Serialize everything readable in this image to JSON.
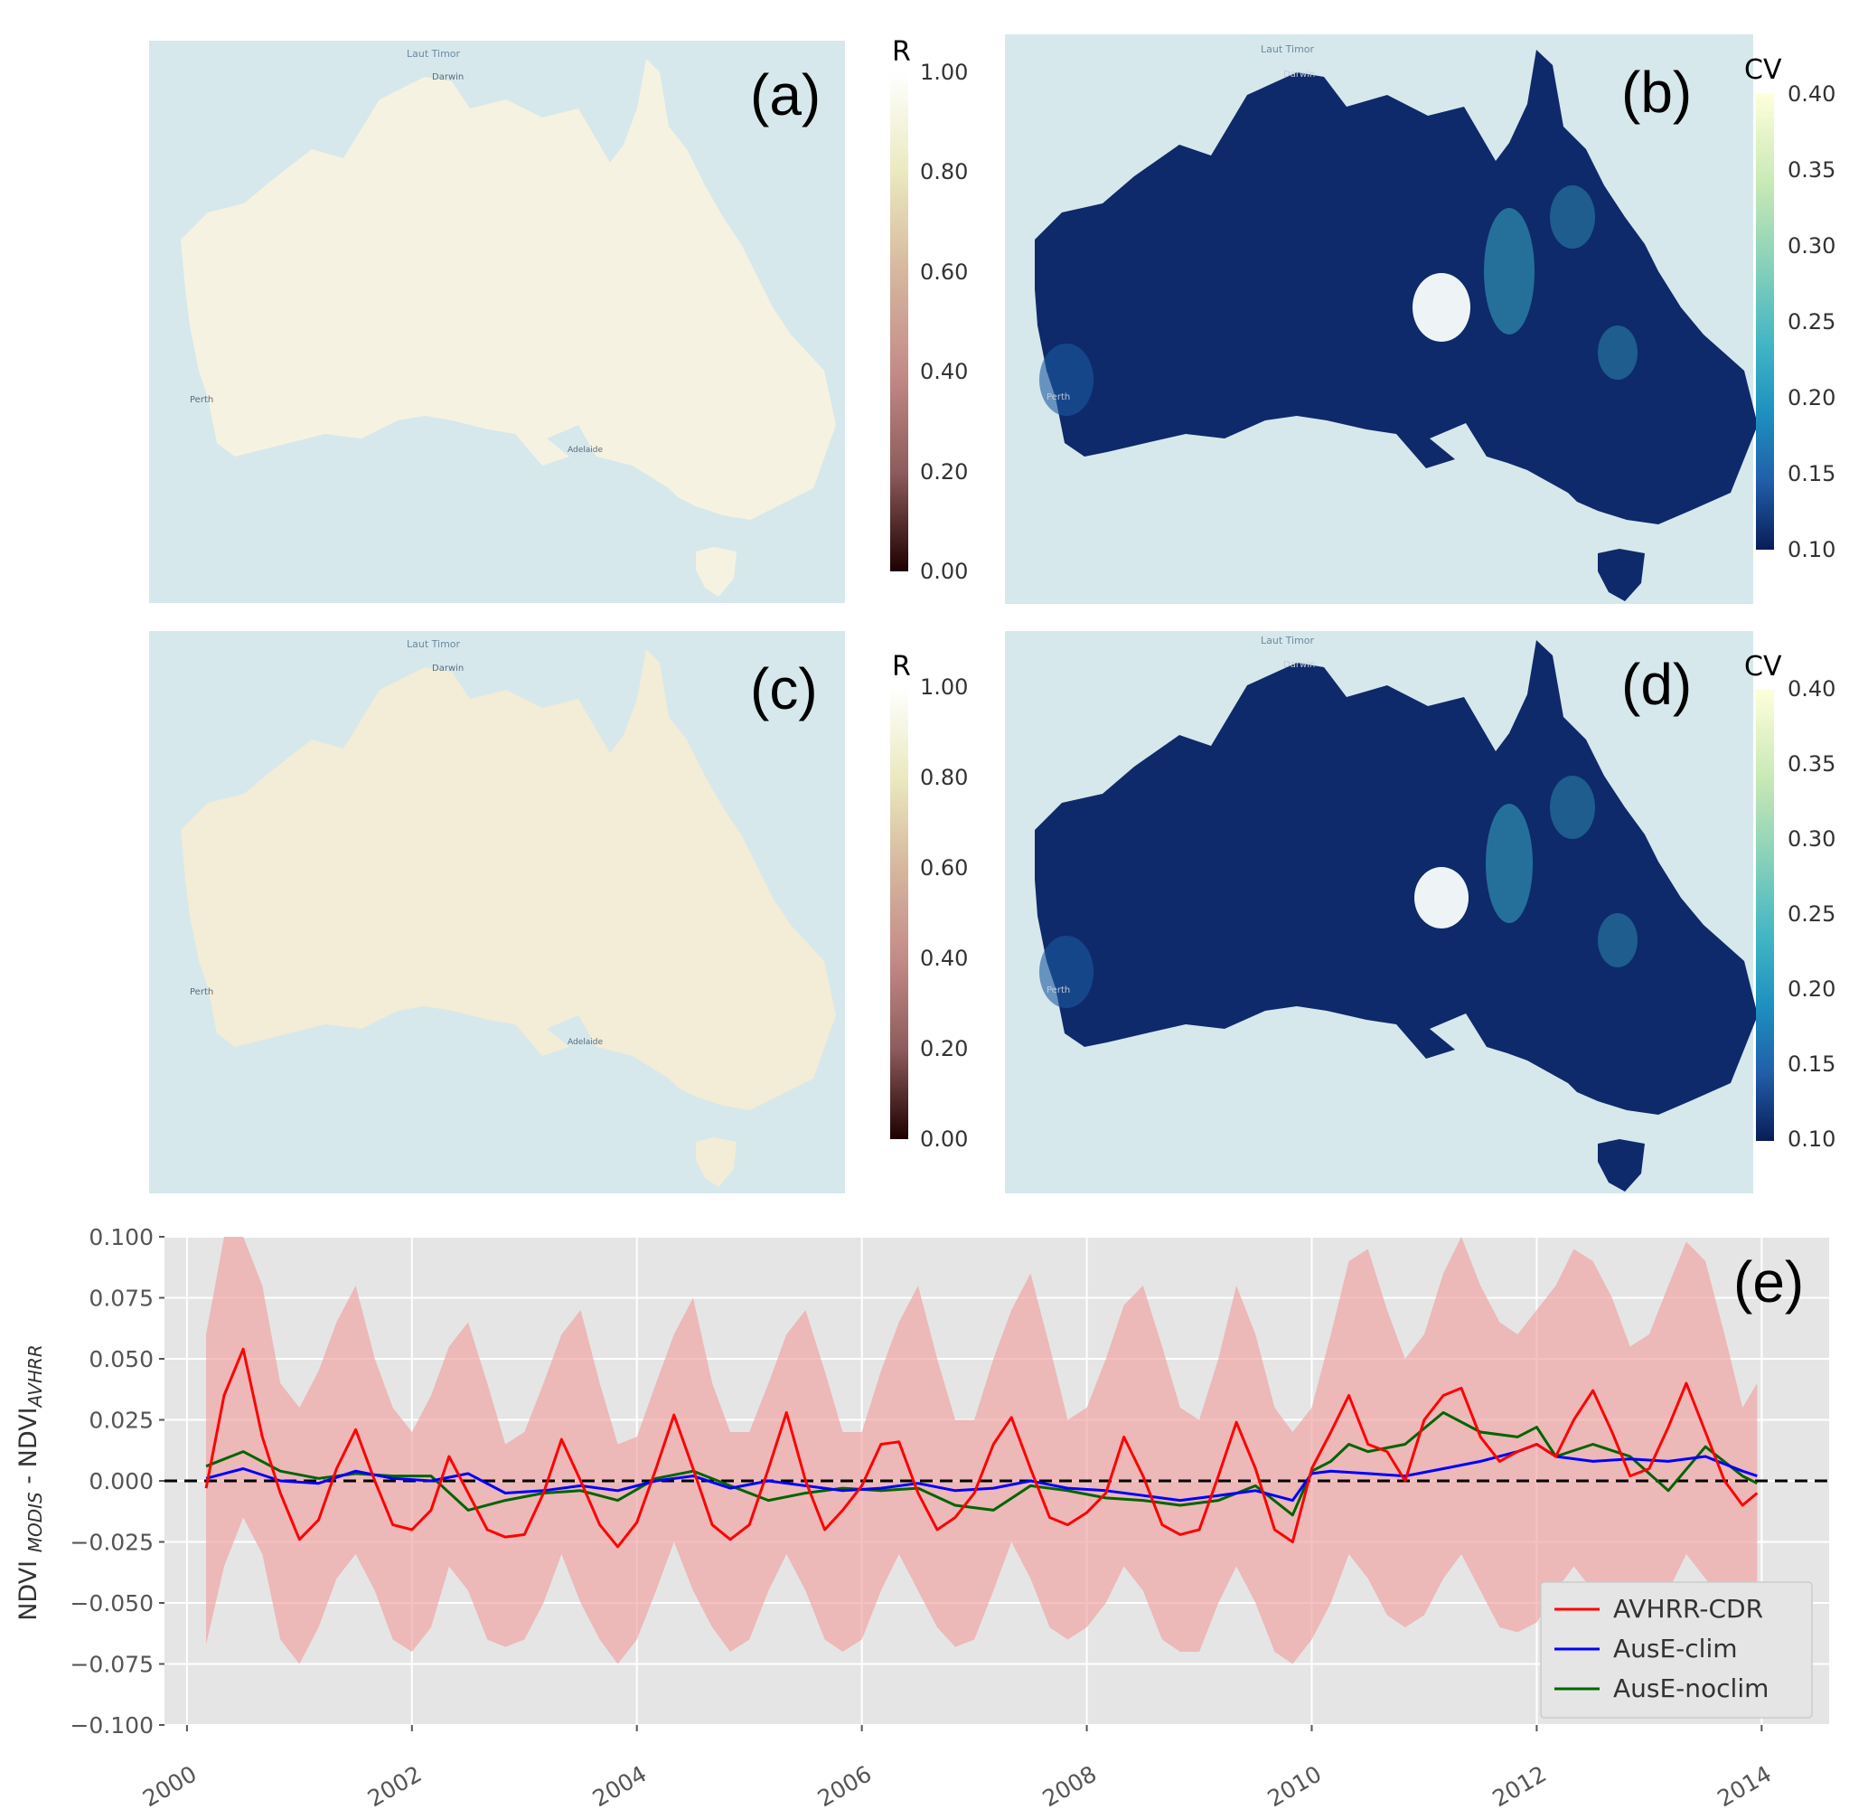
{
  "panels": [
    {
      "label": "(a)",
      "colorbar": {
        "title": "R",
        "ticks": [
          "1.00",
          "0.80",
          "0.60",
          "0.40",
          "0.20",
          "0.00"
        ],
        "cmap": "pink"
      }
    },
    {
      "label": "(b)",
      "colorbar": {
        "title": "CV",
        "ticks": [
          "0.40",
          "0.35",
          "0.30",
          "0.25",
          "0.20",
          "0.15",
          "0.10"
        ],
        "cmap": "YlGnBu"
      }
    },
    {
      "label": "(c)",
      "colorbar": {
        "title": "R",
        "ticks": [
          "1.00",
          "0.80",
          "0.60",
          "0.40",
          "0.20",
          "0.00"
        ],
        "cmap": "pink"
      }
    },
    {
      "label": "(d)",
      "colorbar": {
        "title": "CV",
        "ticks": [
          "0.40",
          "0.35",
          "0.30",
          "0.25",
          "0.20",
          "0.15",
          "0.10"
        ],
        "cmap": "YlGnBu"
      }
    }
  ],
  "map_labels": {
    "darwin": "Darwin",
    "perth": "Perth",
    "adelaide": "Adelaide",
    "timor": "Laut Timor"
  },
  "colors": {
    "ocean": "#d6e8ec",
    "land_r": "#f6f2e2",
    "land_cv": "#0e2a6a",
    "avhrr": "#ff0000",
    "clim": "#0000ff",
    "noclim": "#006400",
    "band": "#f0a0a0",
    "plot_bg": "#e5e5e5"
  },
  "chart_data": {
    "type": "line",
    "panel_label": "(e)",
    "ylabel": "NDVI MODIS - NDVI AVHRR",
    "ylim": [
      -0.1,
      0.1
    ],
    "xlim": [
      1999.8,
      2014.6
    ],
    "yticks": [
      "0.100",
      "0.075",
      "0.050",
      "0.025",
      "0.000",
      "−0.025",
      "−0.050",
      "−0.075",
      "−0.100"
    ],
    "xticks": [
      "2000",
      "2002",
      "2004",
      "2006",
      "2008",
      "2010",
      "2012",
      "2014"
    ],
    "grid": true,
    "legend_position": "lower-right",
    "reference_line": 0.0,
    "series": [
      {
        "name": "AVHRR-CDR",
        "color": "#ff0000",
        "x": [
          2000.17,
          2000.33,
          2000.5,
          2000.67,
          2000.83,
          2001.0,
          2001.17,
          2001.33,
          2001.5,
          2001.67,
          2001.83,
          2002.0,
          2002.17,
          2002.33,
          2002.5,
          2002.67,
          2002.83,
          2003.0,
          2003.17,
          2003.33,
          2003.5,
          2003.67,
          2003.83,
          2004.0,
          2004.17,
          2004.33,
          2004.5,
          2004.67,
          2004.83,
          2005.0,
          2005.17,
          2005.33,
          2005.5,
          2005.67,
          2005.83,
          2006.0,
          2006.17,
          2006.33,
          2006.5,
          2006.67,
          2006.83,
          2007.0,
          2007.17,
          2007.33,
          2007.5,
          2007.67,
          2007.83,
          2008.0,
          2008.17,
          2008.33,
          2008.5,
          2008.67,
          2008.83,
          2009.0,
          2009.17,
          2009.33,
          2009.5,
          2009.67,
          2009.83,
          2010.0,
          2010.17,
          2010.33,
          2010.5,
          2010.67,
          2010.83,
          2011.0,
          2011.17,
          2011.33,
          2011.5,
          2011.67,
          2011.83,
          2012.0,
          2012.17,
          2012.33,
          2012.5,
          2012.67,
          2012.83,
          2013.0,
          2013.17,
          2013.33,
          2013.5,
          2013.67,
          2013.83,
          2013.96
        ],
        "y": [
          -0.003,
          0.035,
          0.054,
          0.018,
          -0.005,
          -0.024,
          -0.016,
          0.005,
          0.021,
          0.0,
          -0.018,
          -0.02,
          -0.012,
          0.01,
          -0.005,
          -0.02,
          -0.023,
          -0.022,
          -0.005,
          0.017,
          0.0,
          -0.018,
          -0.027,
          -0.017,
          0.005,
          0.027,
          0.005,
          -0.018,
          -0.024,
          -0.018,
          0.005,
          0.028,
          0.0,
          -0.02,
          -0.012,
          -0.002,
          0.015,
          0.016,
          -0.005,
          -0.02,
          -0.015,
          -0.005,
          0.015,
          0.026,
          0.005,
          -0.015,
          -0.018,
          -0.013,
          -0.005,
          0.018,
          0.002,
          -0.018,
          -0.022,
          -0.02,
          0.002,
          0.024,
          0.005,
          -0.02,
          -0.025,
          0.005,
          0.02,
          0.035,
          0.015,
          0.012,
          0.0,
          0.025,
          0.035,
          0.038,
          0.018,
          0.008,
          0.012,
          0.015,
          0.01,
          0.025,
          0.037,
          0.02,
          0.002,
          0.005,
          0.022,
          0.04,
          0.02,
          0.0,
          -0.01,
          -0.005
        ]
      },
      {
        "name": "AusE-clim",
        "color": "#0000ff",
        "x": [
          2000.17,
          2000.5,
          2000.83,
          2001.17,
          2001.5,
          2001.83,
          2002.17,
          2002.5,
          2002.83,
          2003.17,
          2003.5,
          2003.83,
          2004.17,
          2004.5,
          2004.83,
          2005.17,
          2005.5,
          2005.83,
          2006.17,
          2006.5,
          2006.83,
          2007.17,
          2007.5,
          2007.83,
          2008.17,
          2008.5,
          2008.83,
          2009.17,
          2009.5,
          2009.83,
          2010.0,
          2010.17,
          2010.5,
          2010.83,
          2011.17,
          2011.5,
          2011.83,
          2012.0,
          2012.17,
          2012.5,
          2012.83,
          2013.17,
          2013.5,
          2013.83,
          2013.96
        ],
        "y": [
          0.001,
          0.005,
          0.0,
          -0.001,
          0.004,
          0.001,
          0.0,
          0.003,
          -0.005,
          -0.004,
          -0.002,
          -0.004,
          0.0,
          0.002,
          -0.003,
          0.0,
          -0.002,
          -0.004,
          -0.003,
          -0.001,
          -0.004,
          -0.003,
          0.0,
          -0.003,
          -0.004,
          -0.006,
          -0.008,
          -0.006,
          -0.004,
          -0.008,
          0.003,
          0.004,
          0.003,
          0.002,
          0.005,
          0.008,
          0.012,
          0.015,
          0.01,
          0.008,
          0.009,
          0.008,
          0.01,
          0.004,
          0.002
        ]
      },
      {
        "name": "AusE-noclim",
        "color": "#006400",
        "x": [
          2000.17,
          2000.5,
          2000.83,
          2001.17,
          2001.5,
          2001.83,
          2002.17,
          2002.5,
          2002.83,
          2003.17,
          2003.5,
          2003.83,
          2004.17,
          2004.5,
          2004.83,
          2005.17,
          2005.5,
          2005.83,
          2006.17,
          2006.5,
          2006.83,
          2007.17,
          2007.5,
          2007.83,
          2008.17,
          2008.5,
          2008.83,
          2009.17,
          2009.5,
          2009.83,
          2010.0,
          2010.17,
          2010.33,
          2010.5,
          2010.83,
          2011.17,
          2011.5,
          2011.83,
          2012.0,
          2012.17,
          2012.5,
          2012.83,
          2013.17,
          2013.5,
          2013.83,
          2013.96
        ],
        "y": [
          0.006,
          0.012,
          0.004,
          0.001,
          0.003,
          0.002,
          0.002,
          -0.012,
          -0.008,
          -0.005,
          -0.004,
          -0.008,
          0.001,
          0.004,
          -0.002,
          -0.008,
          -0.005,
          -0.003,
          -0.004,
          -0.003,
          -0.01,
          -0.012,
          -0.002,
          -0.004,
          -0.007,
          -0.008,
          -0.01,
          -0.008,
          -0.002,
          -0.014,
          0.004,
          0.008,
          0.015,
          0.012,
          0.015,
          0.028,
          0.02,
          0.018,
          0.022,
          0.01,
          0.015,
          0.01,
          -0.004,
          0.014,
          0.002,
          -0.001
        ]
      }
    ],
    "band": {
      "name": "AVHRR-CDR spread",
      "color": "#f0a0a0",
      "x": [
        2000.17,
        2000.33,
        2000.5,
        2000.67,
        2000.83,
        2001.0,
        2001.17,
        2001.33,
        2001.5,
        2001.67,
        2001.83,
        2002.0,
        2002.17,
        2002.33,
        2002.5,
        2002.67,
        2002.83,
        2003.0,
        2003.17,
        2003.33,
        2003.5,
        2003.67,
        2003.83,
        2004.0,
        2004.17,
        2004.33,
        2004.5,
        2004.67,
        2004.83,
        2005.0,
        2005.17,
        2005.33,
        2005.5,
        2005.67,
        2005.83,
        2006.0,
        2006.17,
        2006.33,
        2006.5,
        2006.67,
        2006.83,
        2007.0,
        2007.17,
        2007.33,
        2007.5,
        2007.67,
        2007.83,
        2008.0,
        2008.17,
        2008.33,
        2008.5,
        2008.67,
        2008.83,
        2009.0,
        2009.17,
        2009.33,
        2009.5,
        2009.67,
        2009.83,
        2010.0,
        2010.17,
        2010.33,
        2010.5,
        2010.67,
        2010.83,
        2011.0,
        2011.17,
        2011.33,
        2011.5,
        2011.67,
        2011.83,
        2012.0,
        2012.17,
        2012.33,
        2012.5,
        2012.67,
        2012.83,
        2013.0,
        2013.17,
        2013.33,
        2013.5,
        2013.67,
        2013.83,
        2013.96
      ],
      "upper": [
        0.06,
        0.1,
        0.1,
        0.08,
        0.04,
        0.03,
        0.045,
        0.065,
        0.08,
        0.05,
        0.03,
        0.02,
        0.035,
        0.055,
        0.065,
        0.04,
        0.015,
        0.02,
        0.04,
        0.06,
        0.07,
        0.04,
        0.015,
        0.018,
        0.04,
        0.06,
        0.075,
        0.04,
        0.02,
        0.02,
        0.04,
        0.06,
        0.07,
        0.045,
        0.02,
        0.02,
        0.045,
        0.065,
        0.08,
        0.05,
        0.025,
        0.025,
        0.05,
        0.07,
        0.085,
        0.055,
        0.025,
        0.03,
        0.05,
        0.072,
        0.08,
        0.055,
        0.03,
        0.025,
        0.05,
        0.08,
        0.06,
        0.03,
        0.02,
        0.03,
        0.06,
        0.09,
        0.095,
        0.07,
        0.05,
        0.06,
        0.085,
        0.1,
        0.08,
        0.065,
        0.06,
        0.07,
        0.08,
        0.095,
        0.09,
        0.075,
        0.055,
        0.06,
        0.08,
        0.098,
        0.09,
        0.06,
        0.03,
        0.04
      ],
      "lower": [
        -0.067,
        -0.035,
        -0.015,
        -0.03,
        -0.065,
        -0.075,
        -0.06,
        -0.04,
        -0.03,
        -0.045,
        -0.065,
        -0.07,
        -0.06,
        -0.035,
        -0.045,
        -0.065,
        -0.068,
        -0.065,
        -0.05,
        -0.03,
        -0.05,
        -0.065,
        -0.075,
        -0.065,
        -0.045,
        -0.025,
        -0.045,
        -0.06,
        -0.07,
        -0.065,
        -0.045,
        -0.03,
        -0.045,
        -0.065,
        -0.07,
        -0.065,
        -0.045,
        -0.03,
        -0.045,
        -0.06,
        -0.068,
        -0.065,
        -0.045,
        -0.025,
        -0.04,
        -0.06,
        -0.065,
        -0.06,
        -0.05,
        -0.035,
        -0.045,
        -0.065,
        -0.07,
        -0.07,
        -0.05,
        -0.035,
        -0.05,
        -0.07,
        -0.075,
        -0.065,
        -0.05,
        -0.03,
        -0.04,
        -0.055,
        -0.06,
        -0.055,
        -0.04,
        -0.03,
        -0.045,
        -0.06,
        -0.062,
        -0.058,
        -0.045,
        -0.035,
        -0.045,
        -0.055,
        -0.06,
        -0.058,
        -0.045,
        -0.03,
        -0.04,
        -0.05,
        -0.06,
        -0.05
      ]
    }
  }
}
